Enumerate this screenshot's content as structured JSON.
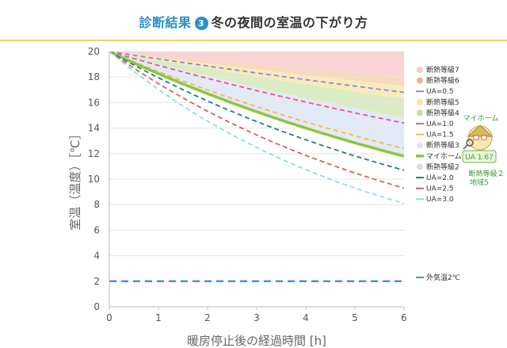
{
  "header": {
    "title": "診断結果",
    "step": "3",
    "subtitle": "冬の夜間の室温の下がり方"
  },
  "mascot": {
    "label": "マイホーム",
    "ua_value": "UA 1.67",
    "rank_text": "断熱等級２",
    "region_text": "地域5"
  },
  "colors": {
    "accent": "#2a8fc7",
    "header_rule": "#f0d070",
    "myhome": "#8cc63f"
  },
  "chart_data": {
    "type": "line",
    "xlabel": "暖房停止後の経過時間 [h]",
    "ylabel": "室温（温度）［℃］",
    "xlim": [
      0,
      6
    ],
    "ylim": [
      0,
      20
    ],
    "xticks": [
      0,
      1,
      2,
      3,
      4,
      5,
      6
    ],
    "yticks": [
      0,
      2,
      4,
      6,
      8,
      10,
      12,
      14,
      16,
      18,
      20
    ],
    "grid": "horizontal",
    "legend_position": "right",
    "bands": [
      {
        "name": "断熱等級7",
        "color": "#f9c9c9",
        "upper": [
          20,
          20
        ],
        "lower": [
          20,
          18.0
        ]
      },
      {
        "name": "断熱等級6",
        "color": "#f5cfae",
        "upper": [
          20,
          18.0
        ],
        "lower": [
          20,
          17.3
        ]
      },
      {
        "name": "断熱等級5",
        "color": "#f8e6a8",
        "upper": [
          20,
          17.3
        ],
        "lower": [
          20,
          16.3
        ]
      },
      {
        "name": "断熱等級4",
        "color": "#d2e7b6",
        "upper": [
          20,
          16.3
        ],
        "lower": [
          20,
          14.8
        ]
      },
      {
        "name": "断熱等級3",
        "color": "#dde3f6",
        "upper": [
          20,
          14.8
        ],
        "lower": [
          20,
          11.7
        ]
      },
      {
        "name": "断熱等級2",
        "color": "#e3e3e3",
        "upper": [
          20,
          11.7
        ],
        "lower": [
          20,
          11.7
        ]
      }
    ],
    "series": [
      {
        "name": "UA=0.5",
        "color": "#8c86e0",
        "style": "dashed",
        "end": 16.8
      },
      {
        "name": "UA=1.0",
        "color": "#e8558a",
        "style": "dashed",
        "end": 14.4
      },
      {
        "name": "UA=1.5",
        "color": "#e8c23a",
        "style": "dashed",
        "end": 12.4
      },
      {
        "name": "マイホーム",
        "color": "#8cc63f",
        "style": "solid",
        "end": 11.8
      },
      {
        "name": "UA=2.0",
        "color": "#1f7f7f",
        "style": "dashed",
        "end": 10.7
      },
      {
        "name": "UA=2.5",
        "color": "#e25c5c",
        "style": "dashed",
        "end": 9.3
      },
      {
        "name": "UA=3.0",
        "color": "#8fdde6",
        "style": "dashed",
        "end": 8.1
      },
      {
        "name": "外気温2℃",
        "color": "#4f8fd6",
        "style": "dashed",
        "constant": 2
      }
    ],
    "legend": [
      {
        "name": "断熱等級7",
        "kind": "dot",
        "color": "#f9c9c9"
      },
      {
        "name": "断熱等級6",
        "kind": "dot",
        "color": "#f0b48c"
      },
      {
        "name": "UA=0.5",
        "kind": "line",
        "color": "#8c86e0"
      },
      {
        "name": "断熱等級5",
        "kind": "dot",
        "color": "#f8e6a8"
      },
      {
        "name": "断熱等級4",
        "kind": "dot",
        "color": "#c8e0a8"
      },
      {
        "name": "UA=1.0",
        "kind": "line",
        "color": "#e8558a"
      },
      {
        "name": "UA=1.5",
        "kind": "line",
        "color": "#e8c23a"
      },
      {
        "name": "断熱等級3",
        "kind": "dot",
        "color": "#dde3f6"
      },
      {
        "name": "マイホーム",
        "kind": "thick",
        "color": "#8cc63f"
      },
      {
        "name": "断熱等級2",
        "kind": "dot",
        "color": "#dcdcdc"
      },
      {
        "name": "UA=2.0",
        "kind": "line",
        "color": "#1f7f7f"
      },
      {
        "name": "UA=2.5",
        "kind": "line",
        "color": "#e25c5c"
      },
      {
        "name": "UA=3.0",
        "kind": "line",
        "color": "#8fdde6"
      },
      {
        "name": "外気温2℃",
        "kind": "line",
        "color": "#4f8fd6"
      }
    ]
  }
}
